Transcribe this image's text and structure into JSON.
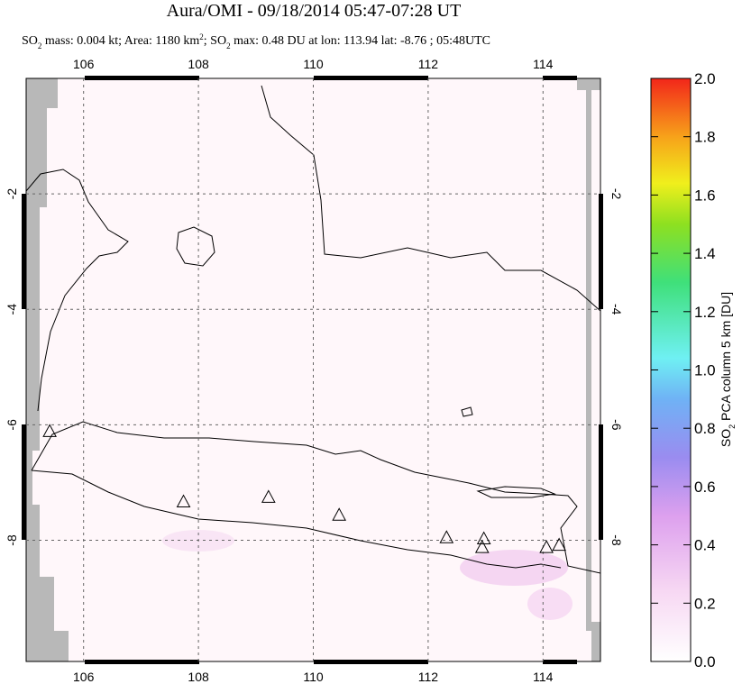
{
  "chart_data": {
    "type": "map",
    "title": "Aura/OMI - 09/18/2014 05:47-07:28 UT",
    "subtitle": [
      "SO",
      "2",
      " mass: 0.004 kt; Area: 1180 km",
      "2",
      "; SO",
      "2",
      " max: 0.48 DU at lon: 113.94 lat: -8.76 ; 05:48UTC"
    ],
    "xlim": [
      105,
      115
    ],
    "xticks": [
      106,
      108,
      110,
      112,
      114
    ],
    "ylim": [
      -10.1,
      0
    ],
    "yticks": [
      -2,
      -4,
      -6,
      -8
    ],
    "grid": true,
    "volcanoes": {
      "lon": [
        105.41,
        107.74,
        109.22,
        110.45,
        112.32,
        112.97,
        112.94,
        114.06,
        114.28
      ],
      "lat": [
        -6.11,
        -7.33,
        -7.25,
        -7.56,
        -7.95,
        -7.97,
        -8.12,
        -8.12,
        -8.08
      ]
    },
    "colorbar": {
      "label": [
        "SO",
        "2",
        " PCA column 5 km [DU]"
      ],
      "lim": [
        0,
        2
      ],
      "ticks": [
        {
          "value": 0,
          "label": "0.0"
        },
        0.2,
        0.4,
        0.6,
        0.8,
        {
          "value": 1,
          "label": "1.0"
        },
        1.2,
        1.4,
        1.6,
        1.8,
        {
          "value": 2,
          "label": "2.0"
        }
      ]
    }
  }
}
